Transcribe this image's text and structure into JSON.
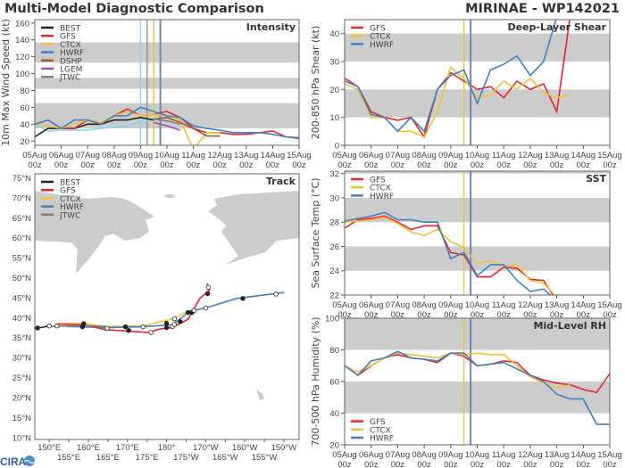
{
  "header": {
    "title": "Multi-Model Diagnostic Comparison",
    "storm": "MIRINAE - WP142021"
  },
  "logo_text": "CIRA",
  "colors": {
    "BEST": "#222222",
    "GFS": "#e8242a",
    "CTCX": "#f2c12e",
    "HWRF": "#3b82c4",
    "DSHP": "#9b5a33",
    "LGEM": "#9b4fb5",
    "JTWC": "#808080",
    "unlabeled": "#7fd6f2",
    "band": "#cccccc",
    "land": "#cccccc"
  },
  "time_axis": {
    "ticks": [
      "05Aug",
      "06Aug",
      "07Aug",
      "08Aug",
      "09Aug",
      "10Aug",
      "11Aug",
      "12Aug",
      "13Aug",
      "14Aug",
      "15Aug"
    ],
    "tick_hour": "00z",
    "times": [
      "05Aug00z",
      "05Aug12z",
      "06Aug00z",
      "06Aug12z",
      "07Aug00z",
      "07Aug12z",
      "08Aug00z",
      "08Aug12z",
      "09Aug00z",
      "09Aug12z",
      "10Aug00z",
      "10Aug12z",
      "11Aug00z",
      "11Aug12z",
      "12Aug00z",
      "12Aug12z",
      "13Aug00z",
      "13Aug12z",
      "14Aug00z",
      "14Aug12z",
      "15Aug00z"
    ]
  },
  "chart_data": [
    {
      "id": "intensity",
      "type": "line",
      "title": "Intensity",
      "ylabel": "10m Max Wind Speed (kt)",
      "ylim": [
        15,
        164
      ],
      "yticks": [
        20,
        40,
        60,
        80,
        100,
        120,
        140,
        160
      ],
      "bands": [
        [
          35,
          65
        ],
        [
          82,
          95
        ],
        [
          113,
          137
        ]
      ],
      "vlines": [
        {
          "time": "09Aug00z",
          "color": "#7fd6f2"
        },
        {
          "time": "09Aug06z",
          "color": "#9b7f7a"
        },
        {
          "time": "09Aug12z",
          "color": "#f2c12e"
        },
        {
          "time": "09Aug18z",
          "color": "#6f86b8"
        }
      ],
      "legend": [
        "BEST",
        "GFS",
        "CTCX",
        "HWRF",
        "DSHP",
        "LGEM",
        "JTWC"
      ],
      "series": [
        {
          "name": "",
          "color_key": "unlabeled",
          "values": [
            40,
            32,
            33,
            33,
            33,
            35,
            37,
            38,
            43,
            45,
            null,
            null,
            null,
            null,
            null,
            null,
            null,
            null,
            null,
            null,
            null
          ]
        },
        {
          "name": "BEST",
          "values": [
            25,
            35,
            35,
            35,
            40,
            40,
            45,
            45,
            48,
            45,
            null,
            null,
            null,
            null,
            null,
            null,
            null,
            null,
            null,
            null,
            null
          ]
        },
        {
          "name": "GFS",
          "values": [
            40,
            45,
            35,
            35,
            45,
            40,
            50,
            58,
            50,
            52,
            55,
            48,
            35,
            30,
            30,
            28,
            28,
            30,
            32,
            25,
            24
          ]
        },
        {
          "name": "CTCX",
          "values": [
            40,
            38,
            35,
            40,
            45,
            42,
            50,
            55,
            50,
            52,
            50,
            45,
            10,
            30,
            30,
            null,
            null,
            null,
            null,
            null,
            null
          ]
        },
        {
          "name": "HWRF",
          "values": [
            40,
            45,
            35,
            45,
            45,
            40,
            50,
            50,
            60,
            55,
            50,
            48,
            38,
            35,
            33,
            30,
            30,
            30,
            28,
            25,
            23
          ]
        },
        {
          "name": "DSHP",
          "values": [
            null,
            null,
            null,
            null,
            null,
            null,
            null,
            null,
            null,
            46,
            48,
            42,
            35,
            26,
            26,
            null,
            null,
            null,
            null,
            null,
            null
          ]
        },
        {
          "name": "LGEM",
          "values": [
            null,
            null,
            null,
            null,
            null,
            null,
            null,
            null,
            null,
            42,
            38,
            33,
            null,
            null,
            null,
            null,
            null,
            null,
            null,
            null,
            null
          ]
        },
        {
          "name": "JTWC",
          "values": [
            null,
            null,
            null,
            null,
            null,
            null,
            null,
            null,
            null,
            46,
            44,
            40,
            null,
            null,
            null,
            null,
            null,
            null,
            null,
            null,
            null
          ]
        }
      ]
    },
    {
      "id": "shear",
      "type": "line",
      "title": "Deep-Layer Shear",
      "ylabel": "200-850 hPa Shear (kt)",
      "ylim": [
        0,
        45
      ],
      "yticks": [
        0,
        10,
        20,
        30,
        40
      ],
      "bands": [
        [
          10,
          20
        ],
        [
          30,
          40
        ]
      ],
      "vlines": [
        {
          "time": "09Aug12z",
          "color": "#f2c12e"
        },
        {
          "time": "09Aug18z",
          "color": "#6f86b8"
        }
      ],
      "legend": [
        "GFS",
        "CTCX",
        "HWRF"
      ],
      "series": [
        {
          "name": "GFS",
          "values": [
            24,
            21,
            12,
            10,
            9,
            10,
            3,
            20,
            26,
            23,
            20,
            21,
            17,
            23,
            20,
            22,
            12,
            46,
            null,
            null,
            null
          ]
        },
        {
          "name": "CTCX",
          "values": [
            22,
            20,
            10,
            10,
            5,
            5,
            3,
            12,
            28,
            24,
            17,
            18,
            23,
            20,
            24,
            19,
            17,
            18,
            null,
            null,
            null
          ]
        },
        {
          "name": "HWRF",
          "values": [
            23,
            21,
            11,
            10,
            5,
            10,
            5,
            20,
            25,
            27,
            15,
            27,
            29,
            32,
            25,
            30,
            46,
            null,
            null,
            null,
            null
          ]
        }
      ]
    },
    {
      "id": "sst",
      "type": "line",
      "title": "SST",
      "ylabel": "Sea Surface Temp (°C)",
      "ylim": [
        22,
        32.2
      ],
      "yticks": [
        22,
        24,
        26,
        28,
        30,
        32
      ],
      "bands": [
        [
          24,
          26
        ],
        [
          28,
          30
        ],
        [
          32,
          34
        ]
      ],
      "vlines": [
        {
          "time": "09Aug12z",
          "color": "#f2c12e"
        },
        {
          "time": "09Aug18z",
          "color": "#6f86b8"
        }
      ],
      "legend": [
        "GFS",
        "CTCX",
        "HWRF"
      ],
      "series": [
        {
          "name": "GFS",
          "values": [
            27.5,
            28.2,
            28.3,
            28.5,
            28.0,
            27.4,
            27.7,
            27.7,
            25.5,
            25.3,
            23.5,
            23.5,
            24.3,
            24.2,
            23.3,
            23.2,
            21.5,
            null,
            null,
            null,
            null
          ]
        },
        {
          "name": "CTCX",
          "values": [
            28.0,
            28.1,
            28.2,
            28.4,
            27.9,
            27.2,
            26.9,
            27.4,
            26.4,
            25.9,
            24.6,
            24.8,
            24.4,
            24.5,
            23.2,
            23.0,
            21.8,
            null,
            null,
            null,
            null
          ]
        },
        {
          "name": "HWRF",
          "values": [
            28.1,
            28.3,
            28.5,
            28.8,
            28.2,
            28.2,
            28.0,
            28.0,
            25.0,
            25.5,
            23.6,
            24.5,
            24.5,
            23.2,
            22.3,
            22.5,
            21.5,
            null,
            null,
            null,
            null
          ]
        }
      ]
    },
    {
      "id": "rh",
      "type": "line",
      "title": "Mid-Level RH",
      "ylabel": "700-500 hPa Humidity (%)",
      "ylim": [
        20,
        100
      ],
      "yticks": [
        20,
        40,
        60,
        80,
        100
      ],
      "bands": [
        [
          40,
          60
        ],
        [
          80,
          100
        ]
      ],
      "vlines": [
        {
          "time": "09Aug12z",
          "color": "#f2c12e"
        },
        {
          "time": "09Aug18z",
          "color": "#6f86b8"
        }
      ],
      "legend": [
        "GFS",
        "CTCX",
        "HWRF"
      ],
      "series": [
        {
          "name": "GFS",
          "values": [
            70,
            64,
            70,
            75,
            77,
            75,
            74,
            72,
            78,
            76,
            70,
            71,
            73,
            72,
            64,
            61,
            59,
            58,
            55,
            53,
            65
          ]
        },
        {
          "name": "CTCX",
          "values": [
            70,
            66,
            70,
            75,
            78,
            77,
            76,
            75,
            78,
            77,
            78,
            77,
            77,
            70,
            63,
            59,
            56,
            58,
            null,
            null,
            null
          ]
        },
        {
          "name": "HWRF",
          "values": [
            70,
            64,
            73,
            75,
            79,
            75,
            74,
            73,
            78,
            78,
            70,
            71,
            72,
            68,
            64,
            60,
            52,
            49,
            49,
            33,
            33
          ]
        }
      ]
    },
    {
      "id": "track",
      "type": "line",
      "title": "Track",
      "xlim_lon_east": [
        146.3,
        213.9
      ],
      "ylim_lat": [
        9.5,
        76
      ],
      "lat_ticks": [
        {
          "v": 75,
          "l": "75°N"
        },
        {
          "v": 70,
          "l": "70°N"
        },
        {
          "v": 65,
          "l": "65°N"
        },
        {
          "v": 60,
          "l": "60°N"
        },
        {
          "v": 55,
          "l": "55°N"
        },
        {
          "v": 50,
          "l": "50°N"
        },
        {
          "v": 45,
          "l": "45°N"
        },
        {
          "v": 40,
          "l": "40°N"
        },
        {
          "v": 35,
          "l": "35°N"
        },
        {
          "v": 30,
          "l": "30°N"
        },
        {
          "v": 25,
          "l": "25°N"
        },
        {
          "v": 20,
          "l": "20°N"
        },
        {
          "v": 15,
          "l": "15°N"
        },
        {
          "v": 10,
          "l": "10°N"
        }
      ],
      "lon_ticks": [
        {
          "v": 150,
          "l": "150°E"
        },
        {
          "v": 155,
          "l": "155°E"
        },
        {
          "v": 160,
          "l": "160°E"
        },
        {
          "v": 165,
          "l": "165°E"
        },
        {
          "v": 170,
          "l": "170°E"
        },
        {
          "v": 175,
          "l": "175°E"
        },
        {
          "v": 180,
          "l": "180°"
        },
        {
          "v": 185,
          "l": "175°W"
        },
        {
          "v": 190,
          "l": "170°W"
        },
        {
          "v": 195,
          "l": "165°W"
        },
        {
          "v": 200,
          "l": "160°W"
        },
        {
          "v": 205,
          "l": "155°W"
        },
        {
          "v": 210,
          "l": "150°W"
        }
      ],
      "legend": [
        "BEST",
        "GFS",
        "CTCX",
        "HWRF",
        "JTWC"
      ],
      "series": [
        {
          "name": "CTCX",
          "points": [
            [
              152,
              38.5
            ],
            [
              158.7,
              38.5
            ],
            [
              164.4,
              37.8
            ],
            [
              173.9,
              37.9
            ],
            [
              181.5,
              39.7
            ],
            [
              184.6,
              41.1
            ],
            [
              186.8,
              41.7
            ]
          ]
        },
        {
          "name": "HWRF",
          "points": [
            [
              154.5,
              37.8
            ],
            [
              164.4,
              37.5
            ],
            [
              173.9,
              37.7
            ],
            [
              181.5,
              38.2
            ],
            [
              186.1,
              41.7
            ],
            [
              189.9,
              42.4
            ],
            [
              197.9,
              44.8
            ],
            [
              210.1,
              46.3
            ]
          ]
        },
        {
          "name": "GFS",
          "points": [
            [
              152,
              38.4
            ],
            [
              158.7,
              38.2
            ],
            [
              164.4,
              37.0
            ],
            [
              175.1,
              36.3
            ],
            [
              178.5,
              37.2
            ],
            [
              181.5,
              37.5
            ],
            [
              185.5,
              39.6
            ],
            [
              188.5,
              44.8
            ],
            [
              191,
              46.9
            ],
            [
              190.3,
              48.6
            ]
          ]
        },
        {
          "name": "JTWC",
          "points": [
            [
              150,
              37.8
            ],
            [
              158.7,
              38.0
            ],
            [
              164.4,
              37.8
            ]
          ]
        },
        {
          "name": "BEST",
          "points": [
            [
              146.1,
              37.3
            ],
            [
              147,
              37.4
            ],
            [
              150,
              37.9
            ]
          ]
        }
      ],
      "markers": [
        {
          "p": [
            147,
            37.4
          ],
          "filled": true
        },
        {
          "p": [
            158.5,
            37.7
          ],
          "filled": true
        },
        {
          "p": [
            158.8,
            38.5
          ],
          "filled": true
        },
        {
          "p": [
            169.5,
            37.7
          ],
          "filled": true
        },
        {
          "p": [
            170.3,
            36.8
          ],
          "filled": true
        },
        {
          "p": [
            180,
            37.5
          ],
          "filled": true
        },
        {
          "p": [
            180,
            38.6
          ],
          "filled": true
        },
        {
          "p": [
            183.5,
            39
          ],
          "filled": true
        },
        {
          "p": [
            185.5,
            41.3
          ],
          "filled": true
        },
        {
          "p": [
            186.5,
            41.3
          ],
          "filled": true
        },
        {
          "p": [
            190.5,
            46
          ],
          "filled": true
        },
        {
          "p": [
            199.5,
            44.8
          ],
          "filled": true
        },
        {
          "p": [
            150,
            37.9
          ],
          "filled": false
        },
        {
          "p": [
            152,
            37.9
          ],
          "filled": false
        },
        {
          "p": [
            164.8,
            37.3
          ],
          "filled": false
        },
        {
          "p": [
            174,
            37.7
          ],
          "filled": false
        },
        {
          "p": [
            176,
            36.3
          ],
          "filled": false
        },
        {
          "p": [
            181.5,
            37.8
          ],
          "filled": false
        },
        {
          "p": [
            182,
            38.3
          ],
          "filled": false
        },
        {
          "p": [
            182,
            39.7
          ],
          "filled": false
        },
        {
          "p": [
            187,
            41.8
          ],
          "filled": false
        },
        {
          "p": [
            190,
            42.4
          ],
          "filled": false
        },
        {
          "p": [
            190.7,
            47.6
          ],
          "filled": false
        },
        {
          "p": [
            208,
            45.9
          ],
          "filled": false
        }
      ]
    }
  ]
}
